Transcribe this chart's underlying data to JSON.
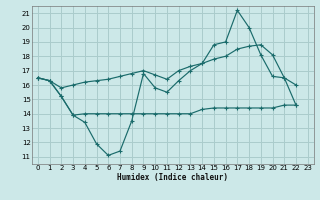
{
  "xlabel": "Humidex (Indice chaleur)",
  "bg_color": "#cce8e8",
  "grid_color": "#aacccc",
  "line_color": "#1a6b6b",
  "xlim": [
    -0.5,
    23.5
  ],
  "ylim": [
    10.5,
    21.5
  ],
  "xticks": [
    0,
    1,
    2,
    3,
    4,
    5,
    6,
    7,
    8,
    9,
    10,
    11,
    12,
    13,
    14,
    15,
    16,
    17,
    18,
    19,
    20,
    21,
    22,
    23
  ],
  "yticks": [
    11,
    12,
    13,
    14,
    15,
    16,
    17,
    18,
    19,
    20,
    21
  ],
  "line1_y": [
    16.5,
    16.3,
    15.2,
    13.9,
    13.4,
    11.9,
    11.1,
    11.4,
    13.5,
    16.8,
    15.8,
    15.5,
    16.3,
    17.0,
    17.5,
    18.8,
    19.0,
    21.2,
    20.0,
    18.1,
    16.6,
    16.5,
    14.6,
    null
  ],
  "line2_y": [
    16.5,
    16.3,
    15.2,
    13.9,
    14.0,
    14.0,
    14.0,
    14.0,
    14.0,
    14.0,
    14.0,
    14.0,
    14.0,
    14.0,
    14.3,
    14.4,
    14.4,
    14.4,
    14.4,
    14.4,
    14.4,
    14.6,
    14.6,
    null
  ],
  "line3_y": [
    16.5,
    16.3,
    15.8,
    16.0,
    16.2,
    16.3,
    16.4,
    16.6,
    16.8,
    17.0,
    16.7,
    16.4,
    17.0,
    17.3,
    17.5,
    17.8,
    18.0,
    18.5,
    18.7,
    18.8,
    18.1,
    16.5,
    16.0,
    null
  ]
}
